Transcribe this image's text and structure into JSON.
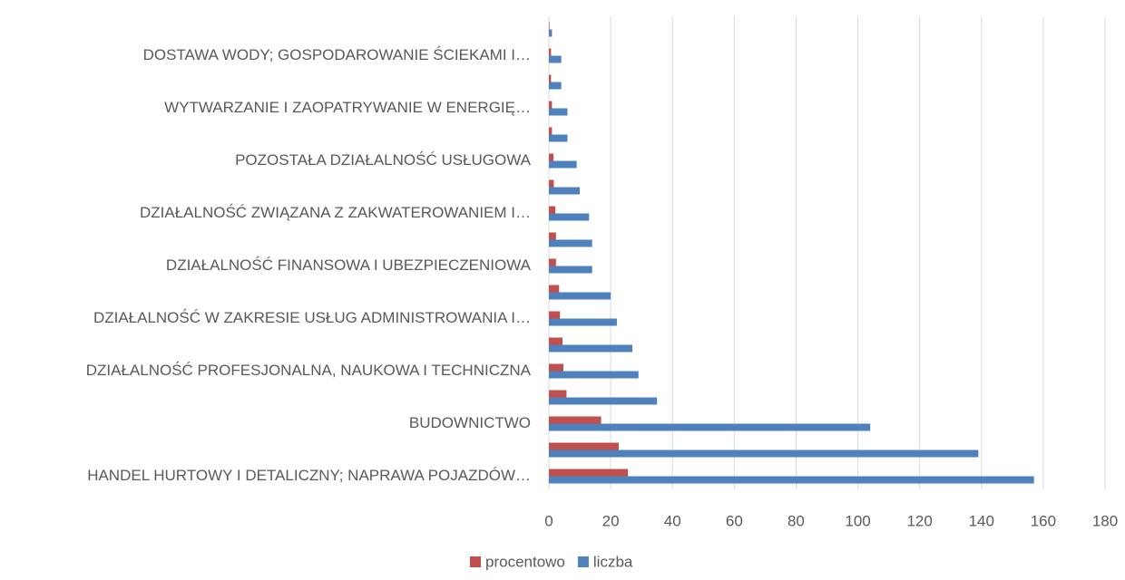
{
  "chart_data": {
    "type": "barh",
    "categories": [
      "HANDEL HURTOWY I DETALICZNY; NAPRAWA POJAZDÓW…",
      null,
      "BUDOWNICTWO",
      null,
      "DZIAŁALNOŚĆ PROFESJONALNA, NAUKOWA I TECHNICZNA",
      null,
      "DZIAŁALNOŚĆ W ZAKRESIE USŁUG ADMINISTROWANIA I…",
      null,
      "DZIAŁALNOŚĆ FINANSOWA I UBEZPIECZENIOWA",
      null,
      "DZIAŁALNOŚĆ ZWIĄZANA Z ZAKWATEROWANIEM I…",
      null,
      "POZOSTAŁA DZIAŁALNOŚĆ USŁUGOWA",
      null,
      "WYTWARZANIE I ZAOPATRYWANIE W ENERGIĘ…",
      null,
      "DOSTAWA WODY; GOSPODAROWANIE ŚCIEKAMI I…",
      null
    ],
    "series": [
      {
        "name": "procentowo",
        "color": "#c0504d",
        "values": [
          25.6,
          22.6,
          16.9,
          5.7,
          4.7,
          4.4,
          3.6,
          3.3,
          2.3,
          2.3,
          2.1,
          1.6,
          1.5,
          1.0,
          1.0,
          0.7,
          0.7,
          0.2
        ]
      },
      {
        "name": "liczba",
        "color": "#4f81bd",
        "values": [
          157,
          139,
          104,
          35,
          29,
          27,
          22,
          20,
          14,
          14,
          13,
          10,
          9,
          6,
          6,
          4,
          4,
          1
        ]
      }
    ],
    "xlim": [
      0,
      180
    ],
    "xticks": [
      0,
      20,
      40,
      60,
      80,
      100,
      120,
      140,
      160,
      180
    ],
    "grid": true,
    "legend": "bottom"
  }
}
